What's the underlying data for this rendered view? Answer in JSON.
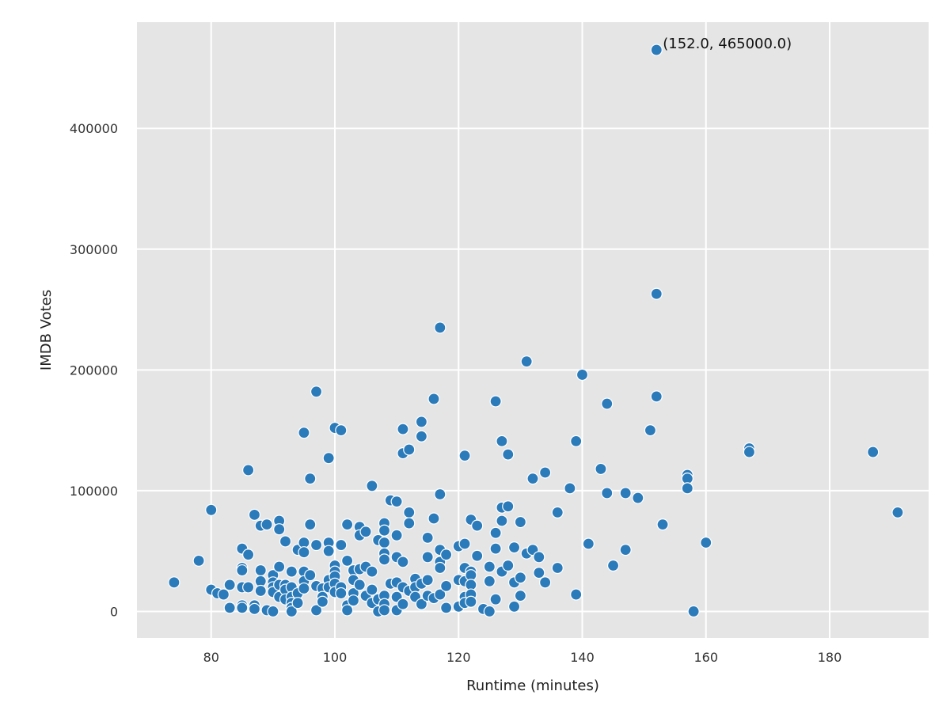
{
  "chart_data": {
    "type": "scatter",
    "title": "",
    "xlabel": "Runtime (minutes)",
    "ylabel": "IMDB Votes",
    "xlim": [
      68,
      196
    ],
    "ylim": [
      -22000,
      488000
    ],
    "xticks": [
      80,
      100,
      120,
      140,
      160,
      180
    ],
    "yticks": [
      0,
      100000,
      200000,
      300000,
      400000
    ],
    "grid": true,
    "legend": "none",
    "colors": {
      "background": "#e5e5e5",
      "grid": "#ffffff",
      "marker": "#2b7bba",
      "marker_edge": "#ffffff"
    },
    "annotations": [
      {
        "x": 152.0,
        "y": 465000,
        "text": "(152.0, 465000.0)"
      }
    ],
    "points": [
      [
        74,
        24000
      ],
      [
        78,
        42000
      ],
      [
        80,
        18000
      ],
      [
        80,
        84000
      ],
      [
        81,
        15000
      ],
      [
        82,
        14000
      ],
      [
        83,
        22000
      ],
      [
        83,
        3000
      ],
      [
        85,
        52000
      ],
      [
        85,
        36000
      ],
      [
        85,
        34000
      ],
      [
        85,
        20000
      ],
      [
        85,
        5000
      ],
      [
        85,
        3000
      ],
      [
        86,
        47000
      ],
      [
        86,
        117000
      ],
      [
        86,
        20000
      ],
      [
        87,
        80000
      ],
      [
        87,
        5000
      ],
      [
        87,
        2000
      ],
      [
        88,
        71000
      ],
      [
        88,
        34000
      ],
      [
        88,
        25000
      ],
      [
        88,
        17000
      ],
      [
        89,
        72000
      ],
      [
        89,
        1000
      ],
      [
        90,
        30000
      ],
      [
        90,
        24000
      ],
      [
        90,
        20000
      ],
      [
        90,
        16000
      ],
      [
        90,
        0
      ],
      [
        91,
        75000
      ],
      [
        91,
        68000
      ],
      [
        91,
        37000
      ],
      [
        91,
        22000
      ],
      [
        91,
        12000
      ],
      [
        92,
        58000
      ],
      [
        92,
        22000
      ],
      [
        92,
        18000
      ],
      [
        92,
        10000
      ],
      [
        93,
        33000
      ],
      [
        93,
        20000
      ],
      [
        93,
        12000
      ],
      [
        93,
        7000
      ],
      [
        93,
        3000
      ],
      [
        93,
        0
      ],
      [
        94,
        51000
      ],
      [
        94,
        15000
      ],
      [
        94,
        7000
      ],
      [
        95,
        57000
      ],
      [
        95,
        49000
      ],
      [
        95,
        148000
      ],
      [
        95,
        33000
      ],
      [
        95,
        25000
      ],
      [
        95,
        19000
      ],
      [
        96,
        72000
      ],
      [
        96,
        110000
      ],
      [
        96,
        30000
      ],
      [
        97,
        182000
      ],
      [
        97,
        55000
      ],
      [
        97,
        21000
      ],
      [
        97,
        1000
      ],
      [
        98,
        19000
      ],
      [
        98,
        12000
      ],
      [
        98,
        8000
      ],
      [
        99,
        127000
      ],
      [
        99,
        57000
      ],
      [
        99,
        50000
      ],
      [
        99,
        26000
      ],
      [
        99,
        20000
      ],
      [
        100,
        152000
      ],
      [
        100,
        38000
      ],
      [
        100,
        33000
      ],
      [
        100,
        29000
      ],
      [
        100,
        23000
      ],
      [
        100,
        16000
      ],
      [
        101,
        150000
      ],
      [
        101,
        55000
      ],
      [
        101,
        20000
      ],
      [
        101,
        15000
      ],
      [
        102,
        72000
      ],
      [
        102,
        42000
      ],
      [
        102,
        5000
      ],
      [
        102,
        1000
      ],
      [
        103,
        34000
      ],
      [
        103,
        26000
      ],
      [
        103,
        15000
      ],
      [
        103,
        9000
      ],
      [
        104,
        70000
      ],
      [
        104,
        63000
      ],
      [
        104,
        35000
      ],
      [
        104,
        22000
      ],
      [
        105,
        66000
      ],
      [
        105,
        37000
      ],
      [
        105,
        13000
      ],
      [
        106,
        104000
      ],
      [
        106,
        33000
      ],
      [
        106,
        18000
      ],
      [
        106,
        7000
      ],
      [
        107,
        59000
      ],
      [
        107,
        10000
      ],
      [
        107,
        0
      ],
      [
        108,
        73000
      ],
      [
        108,
        67000
      ],
      [
        108,
        57000
      ],
      [
        108,
        48000
      ],
      [
        108,
        43000
      ],
      [
        108,
        13000
      ],
      [
        108,
        6000
      ],
      [
        108,
        1000
      ],
      [
        109,
        92000
      ],
      [
        109,
        23000
      ],
      [
        110,
        91000
      ],
      [
        110,
        63000
      ],
      [
        110,
        45000
      ],
      [
        110,
        24000
      ],
      [
        110,
        12000
      ],
      [
        110,
        1000
      ],
      [
        111,
        151000
      ],
      [
        111,
        131000
      ],
      [
        111,
        41000
      ],
      [
        111,
        20000
      ],
      [
        111,
        6000
      ],
      [
        112,
        134000
      ],
      [
        112,
        82000
      ],
      [
        112,
        73000
      ],
      [
        112,
        17000
      ],
      [
        113,
        27000
      ],
      [
        113,
        20000
      ],
      [
        113,
        12000
      ],
      [
        114,
        157000
      ],
      [
        114,
        145000
      ],
      [
        114,
        23000
      ],
      [
        114,
        6000
      ],
      [
        115,
        61000
      ],
      [
        115,
        45000
      ],
      [
        115,
        26000
      ],
      [
        115,
        13000
      ],
      [
        116,
        176000
      ],
      [
        116,
        77000
      ],
      [
        116,
        11000
      ],
      [
        117,
        235000
      ],
      [
        117,
        97000
      ],
      [
        117,
        51000
      ],
      [
        117,
        41000
      ],
      [
        117,
        36000
      ],
      [
        117,
        14000
      ],
      [
        118,
        47000
      ],
      [
        118,
        21000
      ],
      [
        118,
        3000
      ],
      [
        120,
        54000
      ],
      [
        120,
        26000
      ],
      [
        120,
        4000
      ],
      [
        121,
        129000
      ],
      [
        121,
        56000
      ],
      [
        121,
        36000
      ],
      [
        121,
        25000
      ],
      [
        121,
        12000
      ],
      [
        121,
        7000
      ],
      [
        122,
        76000
      ],
      [
        122,
        33000
      ],
      [
        122,
        30000
      ],
      [
        122,
        22000
      ],
      [
        122,
        14000
      ],
      [
        122,
        8000
      ],
      [
        123,
        71000
      ],
      [
        123,
        46000
      ],
      [
        124,
        2000
      ],
      [
        125,
        37000
      ],
      [
        125,
        25000
      ],
      [
        125,
        0
      ],
      [
        126,
        174000
      ],
      [
        126,
        65000
      ],
      [
        126,
        52000
      ],
      [
        126,
        10000
      ],
      [
        127,
        141000
      ],
      [
        127,
        86000
      ],
      [
        127,
        75000
      ],
      [
        127,
        33000
      ],
      [
        128,
        130000
      ],
      [
        128,
        87000
      ],
      [
        128,
        38000
      ],
      [
        129,
        53000
      ],
      [
        129,
        24000
      ],
      [
        129,
        4000
      ],
      [
        130,
        74000
      ],
      [
        130,
        28000
      ],
      [
        130,
        13000
      ],
      [
        131,
        207000
      ],
      [
        131,
        48000
      ],
      [
        132,
        110000
      ],
      [
        132,
        51000
      ],
      [
        133,
        45000
      ],
      [
        133,
        32000
      ],
      [
        134,
        115000
      ],
      [
        134,
        24000
      ],
      [
        136,
        82000
      ],
      [
        136,
        36000
      ],
      [
        138,
        102000
      ],
      [
        139,
        141000
      ],
      [
        139,
        14000
      ],
      [
        140,
        196000
      ],
      [
        141,
        56000
      ],
      [
        143,
        118000
      ],
      [
        144,
        172000
      ],
      [
        144,
        98000
      ],
      [
        145,
        38000
      ],
      [
        147,
        98000
      ],
      [
        147,
        51000
      ],
      [
        149,
        94000
      ],
      [
        151,
        150000
      ],
      [
        152,
        465000
      ],
      [
        152,
        263000
      ],
      [
        152,
        178000
      ],
      [
        153,
        72000
      ],
      [
        157,
        113000
      ],
      [
        157,
        110000
      ],
      [
        157,
        102000
      ],
      [
        158,
        0
      ],
      [
        160,
        57000
      ],
      [
        167,
        135000
      ],
      [
        167,
        132000
      ],
      [
        187,
        132000
      ],
      [
        191,
        82000
      ]
    ]
  }
}
